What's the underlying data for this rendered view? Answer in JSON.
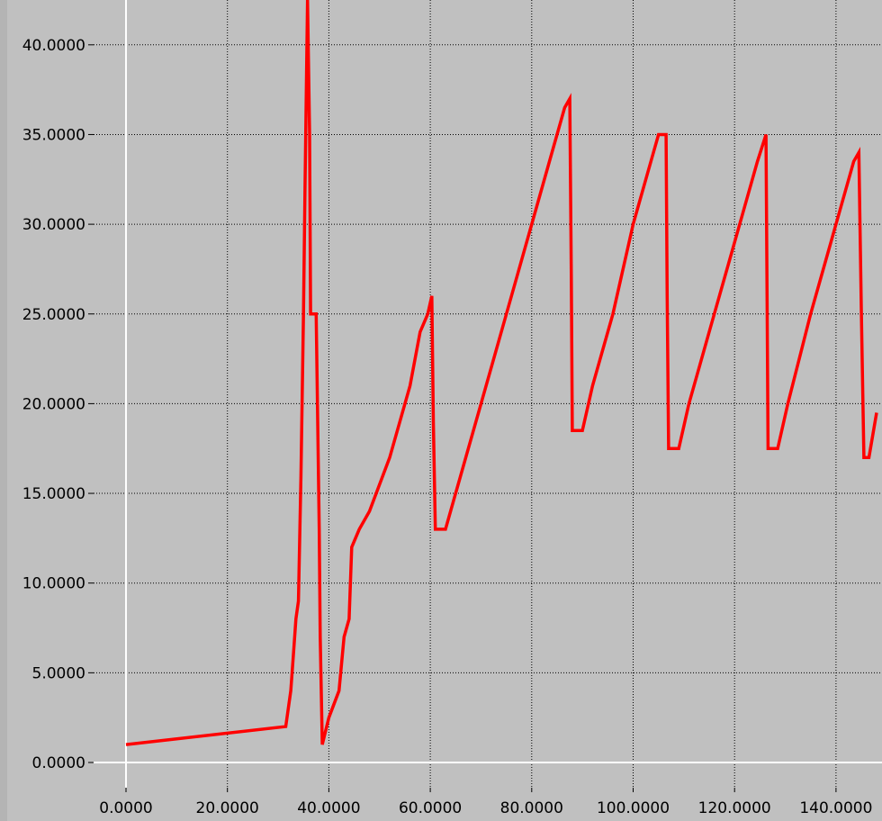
{
  "chart_data": {
    "type": "line",
    "title": "",
    "xlabel": "",
    "ylabel": "",
    "xlim": [
      -1.5,
      148
    ],
    "ylim": [
      -2,
      42.5
    ],
    "x_ticks": [
      0,
      20,
      40,
      60,
      80,
      100,
      120,
      140
    ],
    "x_tick_labels": [
      "0.0000",
      "20.0000",
      "40.0000",
      "60.0000",
      "80.0000",
      "100.0000",
      "120.0000",
      "140.0000"
    ],
    "y_ticks": [
      0,
      5,
      10,
      15,
      20,
      25,
      30,
      35,
      40
    ],
    "y_tick_labels": [
      "0.0000",
      "5.0000",
      "10.0000",
      "15.0000",
      "20.0000",
      "25.0000",
      "30.0000",
      "35.0000",
      "40.0000"
    ],
    "grid": true,
    "colors": {
      "background": "#c0c0c0",
      "line": "#ff0000",
      "grid": "#000000",
      "zero_axes": "#ffffff"
    },
    "series": [
      {
        "color": "#ff0000",
        "points": [
          [
            0,
            1
          ],
          [
            31.5,
            2
          ],
          [
            32.5,
            4
          ],
          [
            33,
            6
          ],
          [
            33.5,
            8
          ],
          [
            34,
            9
          ],
          [
            34.5,
            16
          ],
          [
            35,
            25
          ],
          [
            35.3,
            32
          ],
          [
            35.8,
            42.5
          ],
          [
            36.2,
            35
          ],
          [
            36.4,
            25
          ],
          [
            37.5,
            25
          ],
          [
            37.8,
            19
          ],
          [
            38.1,
            13
          ],
          [
            38.3,
            7
          ],
          [
            38.7,
            1
          ],
          [
            40,
            2.5
          ],
          [
            42,
            4
          ],
          [
            43,
            7
          ],
          [
            44,
            8
          ],
          [
            44.5,
            12
          ],
          [
            46,
            13
          ],
          [
            48,
            14
          ],
          [
            52,
            17
          ],
          [
            56,
            21
          ],
          [
            58,
            24
          ],
          [
            59.5,
            25
          ],
          [
            60.3,
            26
          ],
          [
            60.6,
            19
          ],
          [
            61,
            13
          ],
          [
            63,
            13
          ],
          [
            66,
            16
          ],
          [
            70,
            20
          ],
          [
            76,
            26
          ],
          [
            80,
            30
          ],
          [
            84,
            34
          ],
          [
            86.5,
            36.5
          ],
          [
            87.5,
            37
          ],
          [
            87.8,
            27
          ],
          [
            88,
            18.5
          ],
          [
            90,
            18.5
          ],
          [
            92,
            21
          ],
          [
            96,
            25
          ],
          [
            100,
            30
          ],
          [
            103,
            33
          ],
          [
            105,
            35
          ],
          [
            106.5,
            35
          ],
          [
            106.7,
            26
          ],
          [
            107,
            17.5
          ],
          [
            109,
            17.5
          ],
          [
            111,
            20
          ],
          [
            115,
            24
          ],
          [
            119,
            28
          ],
          [
            122,
            31
          ],
          [
            124.5,
            33.5
          ],
          [
            126.2,
            35
          ],
          [
            126.4,
            26
          ],
          [
            126.6,
            17.5
          ],
          [
            128.5,
            17.5
          ],
          [
            130.5,
            20
          ],
          [
            135,
            25
          ],
          [
            138,
            28
          ],
          [
            141,
            31
          ],
          [
            143.5,
            33.5
          ],
          [
            144.5,
            34
          ],
          [
            145,
            25
          ],
          [
            145.5,
            17
          ],
          [
            146.5,
            17
          ],
          [
            148,
            19.5
          ]
        ]
      }
    ]
  }
}
